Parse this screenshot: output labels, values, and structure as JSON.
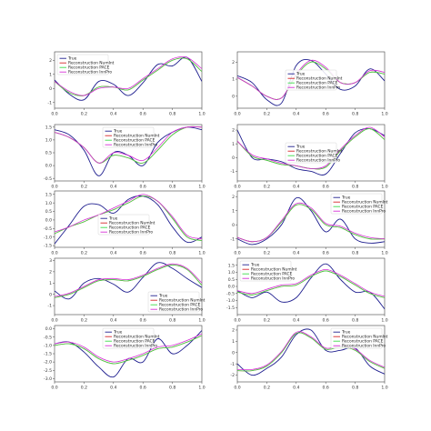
{
  "legend_labels": [
    "True",
    "Reconstruction NumInt",
    "Reconstruction PACE",
    "Reconstruction InnPro"
  ],
  "colors": {
    "true": "#1f1f8f",
    "numint": "#d62728",
    "pace": "#3ddc4a",
    "innpro": "#d630d6",
    "axis": "#444444",
    "background": "#ffffff"
  },
  "chart_data": [
    {
      "type": "line",
      "xlim": [
        0.0,
        1.0
      ],
      "ylim": [
        -1.4,
        2.6
      ],
      "x_ticks": [
        "0.0",
        "0.2",
        "0.4",
        "0.6",
        "0.8",
        "1.0"
      ],
      "y_ticks": [
        "-1",
        "0",
        "1",
        "2"
      ],
      "legend": "top-left",
      "x": [
        0.0,
        0.1,
        0.2,
        0.3,
        0.4,
        0.5,
        0.6,
        0.7,
        0.8,
        0.9,
        1.0
      ],
      "series": [
        {
          "name": "True",
          "values": [
            0.6,
            -0.4,
            -0.8,
            0.5,
            0.3,
            -0.5,
            0.4,
            1.7,
            1.6,
            2.2,
            0.5
          ]
        },
        {
          "name": "Reconstruction NumInt",
          "values": [
            0.5,
            -0.3,
            -0.5,
            0.1,
            0.1,
            -0.1,
            0.6,
            1.3,
            2.0,
            2.1,
            1.2
          ]
        },
        {
          "name": "Reconstruction PACE",
          "values": [
            0.5,
            -0.3,
            -0.5,
            0.1,
            0.1,
            -0.1,
            0.6,
            1.3,
            2.0,
            2.1,
            1.2
          ]
        },
        {
          "name": "Reconstruction InnPro",
          "values": [
            0.5,
            -0.2,
            -0.5,
            0.0,
            0.1,
            0.0,
            0.7,
            1.4,
            2.1,
            2.2,
            1.4
          ]
        }
      ]
    },
    {
      "type": "line",
      "xlim": [
        0.0,
        1.0
      ],
      "ylim": [
        -0.7,
        2.6
      ],
      "x_ticks": [
        "0.0",
        "0.2",
        "0.4",
        "0.6",
        "0.8",
        "1.0"
      ],
      "y_ticks": [
        "0",
        "1",
        "2"
      ],
      "legend": "center",
      "x": [
        0.0,
        0.1,
        0.2,
        0.3,
        0.4,
        0.5,
        0.6,
        0.7,
        0.8,
        0.9,
        1.0
      ],
      "series": [
        {
          "name": "True",
          "values": [
            1.2,
            0.8,
            -0.2,
            -0.4,
            1.8,
            2.1,
            1.3,
            0.4,
            0.6,
            1.6,
            0.9
          ]
        },
        {
          "name": "Reconstruction NumInt",
          "values": [
            1.1,
            0.6,
            0.0,
            -0.1,
            1.2,
            2.0,
            1.6,
            0.8,
            0.8,
            1.4,
            1.3
          ]
        },
        {
          "name": "Reconstruction PACE",
          "values": [
            1.1,
            0.6,
            0.0,
            -0.1,
            1.2,
            2.0,
            1.6,
            0.8,
            0.8,
            1.4,
            1.3
          ]
        },
        {
          "name": "Reconstruction InnPro",
          "values": [
            1.1,
            0.6,
            0.0,
            -0.1,
            1.3,
            2.1,
            1.7,
            0.8,
            0.8,
            1.5,
            1.4
          ]
        }
      ]
    },
    {
      "type": "line",
      "xlim": [
        0.0,
        1.0
      ],
      "ylim": [
        -0.6,
        1.6
      ],
      "x_ticks": [
        "0.0",
        "0.2",
        "0.4",
        "0.6",
        "0.8",
        "1.0"
      ],
      "y_ticks": [
        "-0.5",
        "0.0",
        "0.5",
        "1.0",
        "1.5"
      ],
      "legend": "top-center",
      "x": [
        0.0,
        0.1,
        0.2,
        0.3,
        0.4,
        0.5,
        0.6,
        0.7,
        0.8,
        0.9,
        1.0
      ],
      "series": [
        {
          "name": "True",
          "values": [
            1.4,
            1.2,
            0.6,
            -0.4,
            0.5,
            0.4,
            0.0,
            0.9,
            1.3,
            1.5,
            1.4
          ]
        },
        {
          "name": "Reconstruction NumInt",
          "values": [
            1.3,
            1.1,
            0.7,
            0.1,
            0.4,
            0.3,
            0.1,
            0.6,
            1.2,
            1.5,
            1.5
          ]
        },
        {
          "name": "Reconstruction PACE",
          "values": [
            1.3,
            1.1,
            0.7,
            0.1,
            0.4,
            0.3,
            0.1,
            0.6,
            1.2,
            1.5,
            1.5
          ]
        },
        {
          "name": "Reconstruction InnPro",
          "values": [
            1.3,
            1.1,
            0.7,
            0.1,
            0.5,
            0.4,
            0.2,
            0.7,
            1.3,
            1.5,
            1.5
          ]
        }
      ]
    },
    {
      "type": "line",
      "xlim": [
        0.0,
        1.0
      ],
      "ylim": [
        -1.7,
        2.4
      ],
      "x_ticks": [
        "0.0",
        "0.2",
        "0.4",
        "0.6",
        "0.8",
        "1.0"
      ],
      "y_ticks": [
        "-1",
        "0",
        "1",
        "2"
      ],
      "legend": "center",
      "x": [
        0.0,
        0.1,
        0.2,
        0.3,
        0.4,
        0.5,
        0.6,
        0.7,
        0.8,
        0.9,
        1.0
      ],
      "series": [
        {
          "name": "True",
          "values": [
            2.0,
            0.0,
            -0.1,
            -0.3,
            -0.8,
            -1.0,
            -1.2,
            0.3,
            1.8,
            2.1,
            1.6
          ]
        },
        {
          "name": "Reconstruction NumInt",
          "values": [
            1.2,
            0.1,
            -0.2,
            -0.5,
            -0.6,
            -0.8,
            -0.7,
            0.5,
            1.5,
            2.1,
            1.3
          ]
        },
        {
          "name": "Reconstruction PACE",
          "values": [
            1.2,
            0.1,
            -0.2,
            -0.5,
            -0.6,
            -0.8,
            -0.7,
            0.5,
            1.5,
            2.1,
            1.3
          ]
        },
        {
          "name": "Reconstruction InnPro",
          "values": [
            1.2,
            0.2,
            -0.1,
            -0.4,
            -0.6,
            -0.8,
            -0.6,
            0.6,
            1.6,
            2.2,
            1.5
          ]
        }
      ]
    },
    {
      "type": "line",
      "xlim": [
        0.0,
        1.0
      ],
      "ylim": [
        -1.6,
        1.7
      ],
      "x_ticks": [
        "0.0",
        "0.2",
        "0.4",
        "0.6",
        "0.8",
        "1.0"
      ],
      "y_ticks": [
        "-1.5",
        "-1.0",
        "-0.5",
        "0.0",
        "0.5",
        "1.0",
        "1.5"
      ],
      "legend": "center-left",
      "x": [
        0.0,
        0.1,
        0.2,
        0.3,
        0.4,
        0.5,
        0.6,
        0.7,
        0.8,
        0.9,
        1.0
      ],
      "series": [
        {
          "name": "True",
          "values": [
            -1.4,
            -0.3,
            0.8,
            0.9,
            0.4,
            1.2,
            1.4,
            0.9,
            -0.4,
            -1.3,
            -1.0
          ]
        },
        {
          "name": "Reconstruction NumInt",
          "values": [
            -0.8,
            -0.4,
            -0.1,
            0.3,
            0.6,
            1.0,
            1.4,
            1.1,
            0.1,
            -1.0,
            -1.2
          ]
        },
        {
          "name": "Reconstruction PACE",
          "values": [
            -0.8,
            -0.4,
            -0.1,
            0.3,
            0.6,
            1.0,
            1.4,
            1.1,
            0.1,
            -1.0,
            -1.2
          ]
        },
        {
          "name": "Reconstruction InnPro",
          "values": [
            -0.7,
            -0.4,
            0.0,
            0.3,
            0.7,
            1.1,
            1.5,
            1.1,
            0.2,
            -0.9,
            -1.1
          ]
        }
      ]
    },
    {
      "type": "line",
      "xlim": [
        0.0,
        1.0
      ],
      "ylim": [
        -1.6,
        2.4
      ],
      "x_ticks": [
        "0.0",
        "0.2",
        "0.4",
        "0.6",
        "0.8",
        "1.0"
      ],
      "y_ticks": [
        "-1",
        "0",
        "1",
        "2"
      ],
      "legend": "top-right",
      "x": [
        0.0,
        0.1,
        0.2,
        0.3,
        0.4,
        0.5,
        0.6,
        0.7,
        0.8,
        0.9,
        1.0
      ],
      "series": [
        {
          "name": "True",
          "values": [
            -1.0,
            -1.4,
            -1.0,
            0.0,
            1.9,
            1.0,
            -0.5,
            0.4,
            -1.0,
            -1.3,
            -1.2
          ]
        },
        {
          "name": "Reconstruction NumInt",
          "values": [
            -0.9,
            -1.2,
            -0.9,
            0.2,
            1.4,
            1.1,
            0.0,
            -0.2,
            -0.7,
            -1.0,
            -1.0
          ]
        },
        {
          "name": "Reconstruction PACE",
          "values": [
            -0.9,
            -1.2,
            -0.9,
            0.2,
            1.4,
            1.1,
            0.0,
            -0.2,
            -0.7,
            -1.0,
            -1.0
          ]
        },
        {
          "name": "Reconstruction InnPro",
          "values": [
            -0.9,
            -1.2,
            -0.9,
            0.3,
            1.5,
            1.2,
            0.1,
            -0.1,
            -0.6,
            -0.9,
            -1.0
          ]
        }
      ]
    },
    {
      "type": "line",
      "xlim": [
        0.0,
        1.0
      ],
      "ylim": [
        -1.8,
        3.2
      ],
      "x_ticks": [
        "0.0",
        "0.2",
        "0.4",
        "0.6",
        "0.8",
        "1.0"
      ],
      "y_ticks": [
        "-1",
        "0",
        "1",
        "2",
        "3"
      ],
      "legend": "bottom-right",
      "x": [
        0.0,
        0.1,
        0.2,
        0.3,
        0.4,
        0.5,
        0.6,
        0.7,
        0.8,
        0.9,
        1.0
      ],
      "series": [
        {
          "name": "True",
          "values": [
            0.3,
            -0.4,
            1.0,
            1.4,
            0.9,
            0.2,
            1.5,
            2.8,
            2.3,
            1.4,
            0.6
          ]
        },
        {
          "name": "Reconstruction NumInt",
          "values": [
            -0.3,
            0.0,
            0.6,
            1.2,
            1.3,
            1.2,
            1.6,
            2.2,
            2.6,
            2.2,
            0.8
          ]
        },
        {
          "name": "Reconstruction PACE",
          "values": [
            -0.3,
            0.0,
            0.6,
            1.2,
            1.3,
            1.2,
            1.6,
            2.2,
            2.6,
            2.2,
            0.8
          ]
        },
        {
          "name": "Reconstruction InnPro",
          "values": [
            -0.2,
            0.1,
            0.7,
            1.3,
            1.4,
            1.3,
            1.7,
            2.3,
            2.7,
            2.3,
            1.0
          ]
        }
      ]
    },
    {
      "type": "line",
      "xlim": [
        0.0,
        1.0
      ],
      "ylim": [
        -2.0,
        2.0
      ],
      "x_ticks": [
        "0.0",
        "0.2",
        "0.4",
        "0.6",
        "0.8",
        "1.0"
      ],
      "y_ticks": [
        "-1.5",
        "-1.0",
        "-0.5",
        "0.0",
        "0.5",
        "1.0",
        "1.5"
      ],
      "legend": "top-left",
      "x": [
        0.0,
        0.1,
        0.2,
        0.3,
        0.4,
        0.5,
        0.6,
        0.7,
        0.8,
        0.9,
        1.0
      ],
      "series": [
        {
          "name": "True",
          "values": [
            -0.3,
            -0.8,
            -0.4,
            -1.1,
            -0.8,
            0.6,
            1.6,
            0.5,
            -0.4,
            -0.4,
            -1.6
          ]
        },
        {
          "name": "Reconstruction NumInt",
          "values": [
            -0.4,
            -0.6,
            -0.3,
            0.0,
            0.1,
            0.7,
            1.1,
            0.7,
            0.1,
            -0.5,
            -0.8
          ]
        },
        {
          "name": "Reconstruction PACE",
          "values": [
            -0.4,
            -0.6,
            -0.3,
            0.0,
            0.1,
            0.7,
            1.1,
            0.7,
            0.1,
            -0.5,
            -0.8
          ]
        },
        {
          "name": "Reconstruction InnPro",
          "values": [
            -0.3,
            -0.5,
            -0.2,
            0.1,
            0.2,
            0.8,
            1.2,
            0.8,
            0.2,
            -0.4,
            -0.7
          ]
        }
      ]
    },
    {
      "type": "line",
      "xlim": [
        0.0,
        1.0
      ],
      "ylim": [
        -3.2,
        0.2
      ],
      "x_ticks": [
        "0.0",
        "0.2",
        "0.4",
        "0.6",
        "0.8",
        "1.0"
      ],
      "y_ticks": [
        "-3.0",
        "-2.5",
        "-2.0",
        "-1.5",
        "-1.0",
        "-0.5",
        "0.0"
      ],
      "legend": "top-center",
      "x": [
        0.0,
        0.1,
        0.2,
        0.3,
        0.4,
        0.5,
        0.6,
        0.7,
        0.8,
        0.9,
        1.0
      ],
      "series": [
        {
          "name": "True",
          "values": [
            -0.9,
            -0.8,
            -1.4,
            -2.3,
            -2.9,
            -1.8,
            -2.0,
            -0.6,
            -1.5,
            -1.0,
            -0.1
          ]
        },
        {
          "name": "Reconstruction NumInt",
          "values": [
            -1.0,
            -0.9,
            -1.2,
            -1.8,
            -2.1,
            -1.9,
            -1.6,
            -1.2,
            -1.1,
            -0.8,
            -0.4
          ]
        },
        {
          "name": "Reconstruction PACE",
          "values": [
            -1.0,
            -0.9,
            -1.2,
            -1.8,
            -2.1,
            -1.9,
            -1.6,
            -1.2,
            -1.1,
            -0.8,
            -0.4
          ]
        },
        {
          "name": "Reconstruction InnPro",
          "values": [
            -0.9,
            -0.8,
            -1.1,
            -1.7,
            -2.0,
            -1.8,
            -1.5,
            -1.1,
            -1.0,
            -0.7,
            -0.3
          ]
        }
      ]
    },
    {
      "type": "line",
      "xlim": [
        0.0,
        1.0
      ],
      "ylim": [
        -2.6,
        2.4
      ],
      "x_ticks": [
        "0.0",
        "0.2",
        "0.4",
        "0.6",
        "0.8",
        "1.0"
      ],
      "y_ticks": [
        "-2",
        "-1",
        "0",
        "1",
        "2"
      ],
      "legend": "top-right",
      "x": [
        0.0,
        0.1,
        0.2,
        0.3,
        0.4,
        0.5,
        0.6,
        0.7,
        0.8,
        0.9,
        1.0
      ],
      "series": [
        {
          "name": "True",
          "values": [
            -1.0,
            -2.0,
            -1.4,
            -0.4,
            1.6,
            2.0,
            0.2,
            0.2,
            0.4,
            -1.2,
            -1.9
          ]
        },
        {
          "name": "Reconstruction NumInt",
          "values": [
            -1.6,
            -1.6,
            -1.2,
            0.0,
            1.7,
            1.3,
            0.3,
            0.5,
            0.2,
            -0.8,
            -1.4
          ]
        },
        {
          "name": "Reconstruction PACE",
          "values": [
            -1.6,
            -1.6,
            -1.2,
            0.0,
            1.7,
            1.3,
            0.3,
            0.5,
            0.2,
            -0.8,
            -1.4
          ]
        },
        {
          "name": "Reconstruction InnPro",
          "values": [
            -1.5,
            -1.5,
            -1.1,
            0.1,
            1.8,
            1.4,
            0.4,
            0.6,
            0.3,
            -0.7,
            -1.3
          ]
        }
      ]
    }
  ]
}
